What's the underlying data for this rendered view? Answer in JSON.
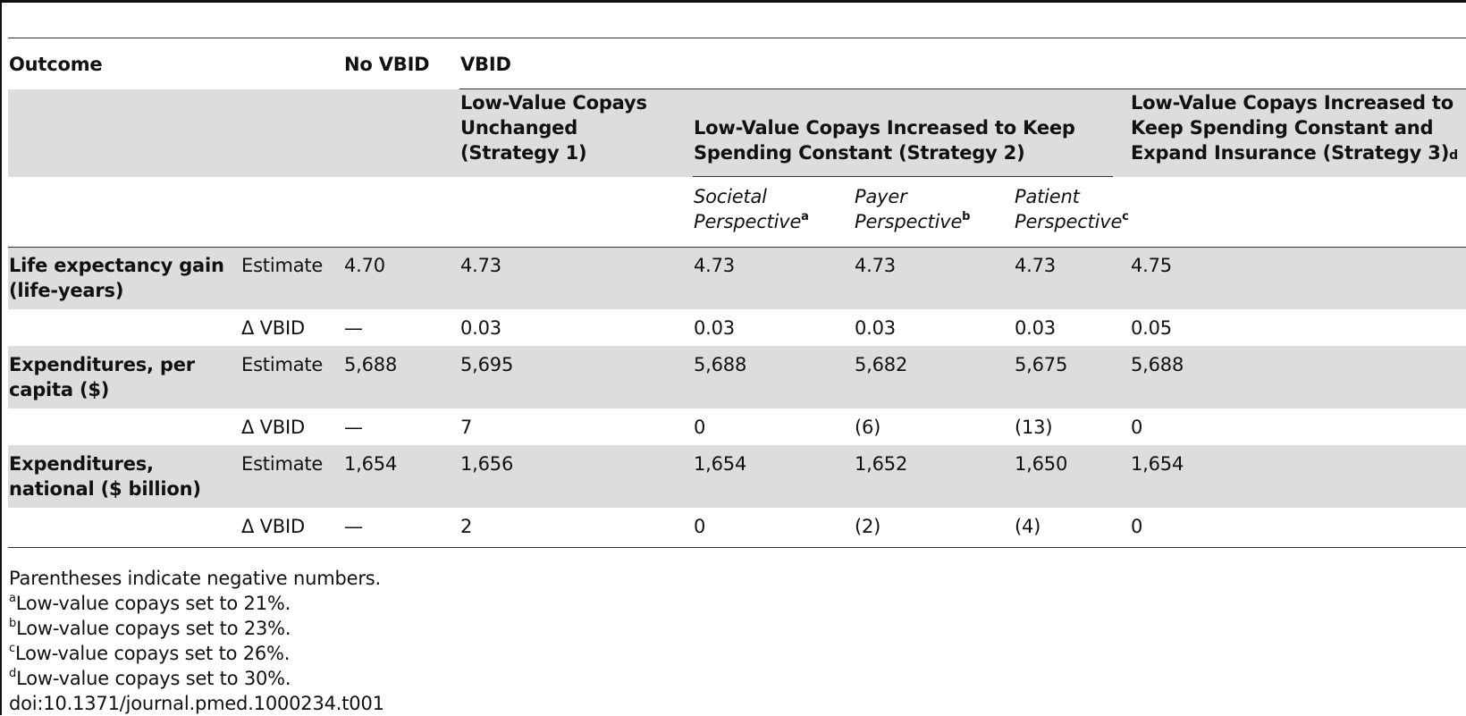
{
  "table": {
    "headers": {
      "outcome": "Outcome",
      "no_vbid": "No VBID",
      "vbid": "VBID",
      "strategy1": [
        "Low-Value Copays",
        "Unchanged",
        "(Strategy 1)"
      ],
      "strategy2": [
        "Low-Value Copays Increased to Keep",
        "Spending Constant (Strategy 2)"
      ],
      "strategy3": [
        "Low-Value Copays Increased to",
        "Keep Spending Constant and",
        "Expand Insurance (Strategy 3)"
      ],
      "strategy3_mark": "d",
      "societal": [
        "Societal",
        "Perspective"
      ],
      "societal_mark": "a",
      "payer": [
        "Payer",
        "Perspective"
      ],
      "payer_mark": "b",
      "patient": [
        "Patient",
        "Perspective"
      ],
      "patient_mark": "c"
    },
    "rows": [
      {
        "outcome": [
          "Life expectancy gain",
          "(life-years)"
        ],
        "measure": "Estimate",
        "values": [
          "4.70",
          "4.73",
          "4.73",
          "4.73",
          "4.73",
          "4.75"
        ]
      },
      {
        "outcome": [],
        "measure": "Δ VBID",
        "values": [
          "—",
          "0.03",
          "0.03",
          "0.03",
          "0.03",
          "0.05"
        ]
      },
      {
        "outcome": [
          "Expenditures, per",
          "capita ($)"
        ],
        "measure": "Estimate",
        "values": [
          "5,688",
          "5,695",
          "5,688",
          "5,682",
          "5,675",
          "5,688"
        ]
      },
      {
        "outcome": [],
        "measure": "Δ VBID",
        "values": [
          "—",
          "7",
          "0",
          "(6)",
          "(13)",
          "0"
        ]
      },
      {
        "outcome": [
          "Expenditures,",
          "national ($ billion)"
        ],
        "measure": "Estimate",
        "values": [
          "1,654",
          "1,656",
          "1,654",
          "1,652",
          "1,650",
          "1,654"
        ]
      },
      {
        "outcome": [],
        "measure": "Δ VBID",
        "values": [
          "—",
          "2",
          "0",
          "(2)",
          "(4)",
          "0"
        ]
      }
    ]
  },
  "notes": {
    "parentheses": "Parentheses indicate negative numbers.",
    "a_mark": "a",
    "a": "Low-value copays set to 21%.",
    "b_mark": "b",
    "b": "Low-value copays set to 23%.",
    "c_mark": "c",
    "c": "Low-value copays set to 26%.",
    "d_mark": "d",
    "d": "Low-value copays set to 30%.",
    "doi": "doi:10.1371/journal.pmed.1000234.t001"
  }
}
